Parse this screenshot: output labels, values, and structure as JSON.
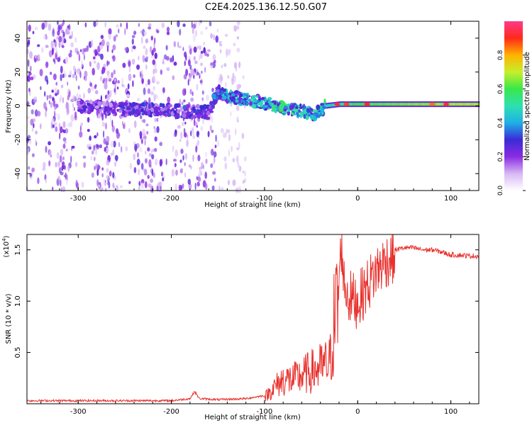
{
  "title": "C2E4.2025.136.12.50.G07",
  "colors": {
    "snr_line": "#e8302c",
    "axis": "#000000",
    "background": "#ffffff"
  },
  "chart_data": [
    {
      "type": "heatmap",
      "name": "spectrogram",
      "xlabel": "Height of straight line (km)",
      "ylabel": "Frequency (Hz)",
      "xlim": [
        -355,
        130
      ],
      "ylim": [
        -50,
        50
      ],
      "xticks": [
        -300,
        -200,
        -100,
        0,
        100
      ],
      "yticks": [
        -40,
        -20,
        0,
        20,
        40
      ],
      "colorbar": {
        "label": "Normalized spectral amplitude",
        "range": [
          0,
          1
        ],
        "ticks": [
          "0.0",
          "0.2",
          "0.4",
          "0.6",
          "0.8"
        ],
        "tick_values": [
          0,
          0.2,
          0.4,
          0.6,
          0.8
        ],
        "colormap": [
          "#ffffff",
          "#d7b8f5",
          "#8a2be2",
          "#3b2bd6",
          "#1fb0e6",
          "#2ee0b0",
          "#38e84a",
          "#c6ef2a",
          "#ffb300",
          "#ff2a1a",
          "#ff3a8a"
        ]
      },
      "signal_track": {
        "x": [
          -355,
          -300,
          -250,
          -200,
          -160,
          -150,
          -140,
          -120,
          -100,
          -80,
          -60,
          -45,
          -35,
          -20,
          0,
          50,
          100,
          130
        ],
        "freq_hz": [
          0,
          0,
          -2,
          -3,
          -4,
          8,
          6,
          4,
          2,
          -1,
          -3,
          -5,
          0,
          1,
          1,
          1,
          1,
          1
        ],
        "peak_amplitude": [
          0.2,
          0.25,
          0.3,
          0.32,
          0.35,
          0.4,
          0.45,
          0.45,
          0.5,
          0.55,
          0.5,
          0.5,
          0.6,
          0.7,
          0.8,
          0.85,
          0.9,
          0.9
        ]
      },
      "noise_region_x": [
        -355,
        -120
      ]
    },
    {
      "type": "line",
      "name": "snr",
      "xlabel": "Height of straight line (km)",
      "ylabel": "SNR (10 * v/v)",
      "scale_label": "(x10",
      "scale_exponent": "4",
      "xlim": [
        -355,
        130
      ],
      "ylim": [
        0,
        1.65
      ],
      "xticks": [
        -300,
        -200,
        -100,
        0,
        100
      ],
      "yticks": [
        0.5,
        1.0,
        1.5
      ],
      "ytick_labels": [
        "0.5",
        "1.0",
        "1.5"
      ],
      "series": [
        {
          "name": "SNR",
          "x": [
            -355,
            -300,
            -250,
            -200,
            -180,
            -175,
            -170,
            -150,
            -120,
            -100,
            -90,
            -80,
            -70,
            -60,
            -50,
            -40,
            -30,
            -25,
            -22,
            -20,
            -17,
            -15,
            -10,
            0,
            10,
            20,
            30,
            40,
            50,
            60,
            70,
            80,
            90,
            100,
            110,
            120,
            130
          ],
          "values": [
            0.03,
            0.03,
            0.03,
            0.03,
            0.05,
            0.12,
            0.05,
            0.04,
            0.05,
            0.08,
            0.2,
            0.3,
            0.3,
            0.35,
            0.4,
            0.45,
            0.5,
            1.05,
            1.2,
            1.3,
            1.65,
            1.25,
            1.1,
            1.05,
            1.2,
            1.35,
            1.45,
            1.5,
            1.52,
            1.52,
            1.5,
            1.5,
            1.48,
            1.45,
            1.45,
            1.44,
            1.44
          ]
        }
      ]
    }
  ]
}
